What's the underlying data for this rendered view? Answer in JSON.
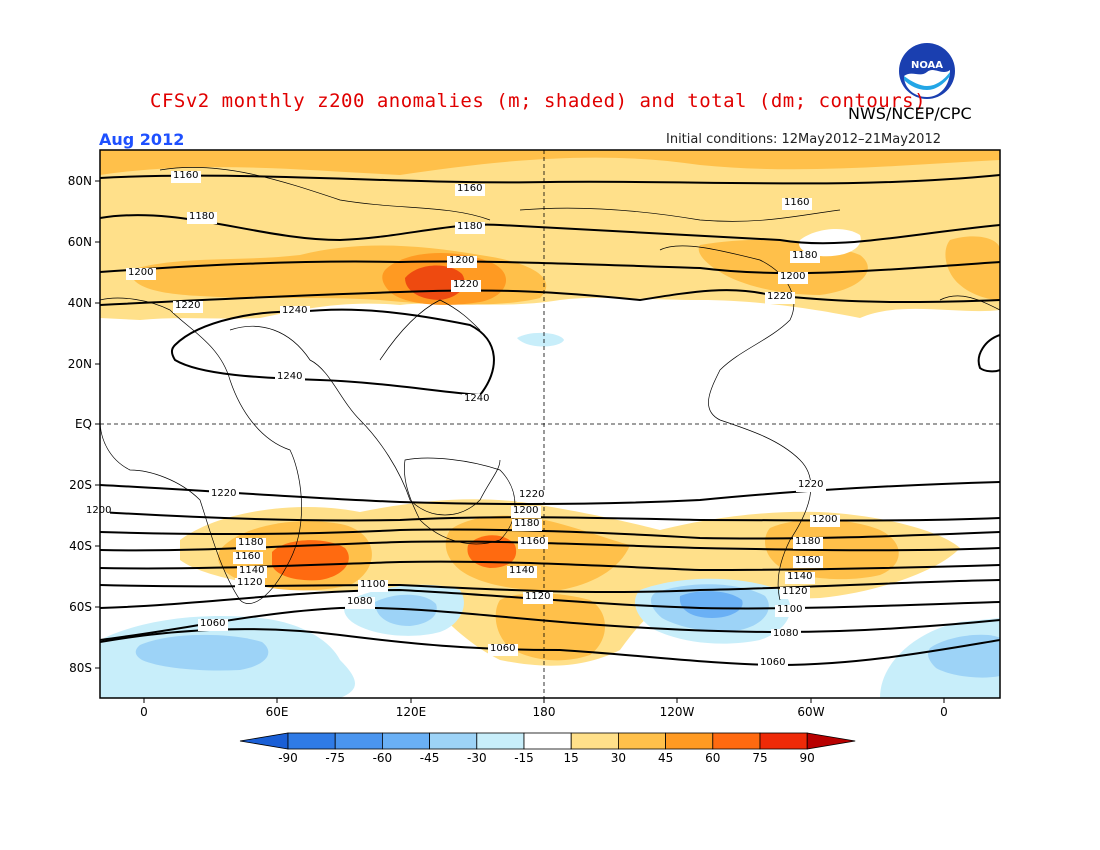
{
  "header": {
    "title": "CFSv2 monthly z200 anomalies (m; shaded) and total (dm; contours)",
    "agency": "NWS/NCEP/CPC",
    "month": "Aug 2012",
    "initial_conditions": "Initial conditions: 12May2012–21May2012",
    "logo_text": "NOAA"
  },
  "map": {
    "latitude_labels": [
      "80N",
      "60N",
      "40N",
      "20N",
      "EQ",
      "20S",
      "40S",
      "60S",
      "80S"
    ],
    "longitude_labels": [
      "0",
      "60E",
      "120E",
      "180",
      "120W",
      "60W",
      "0"
    ],
    "contour_labels": [
      "1160",
      "1160",
      "1160",
      "1180",
      "1180",
      "1180",
      "1200",
      "1200",
      "1200",
      "1220",
      "1220",
      "1220",
      "1240",
      "1240",
      "1240",
      "1220",
      "1220",
      "1220",
      "1200",
      "1200",
      "1200",
      "1180",
      "1180",
      "1180",
      "1160",
      "1160",
      "1160",
      "1140",
      "1140",
      "1140",
      "1120",
      "1120",
      "1120",
      "1100",
      "1100",
      "1080",
      "1080",
      "1060",
      "1060",
      "1060"
    ]
  },
  "colorbar": {
    "labels": [
      "-90",
      "-75",
      "-60",
      "-45",
      "-30",
      "-15",
      "15",
      "30",
      "45",
      "60",
      "75",
      "90"
    ],
    "colors": [
      "#1a5fd6",
      "#2f7be6",
      "#4a95ef",
      "#6ab0f5",
      "#9dd3f7",
      "#c8eefa",
      "#ffffff",
      "#ffe08a",
      "#ffc04a",
      "#ff9a22",
      "#ff6a10",
      "#ee2a08",
      "#b80000"
    ]
  },
  "colors": {
    "title": "#e00000",
    "month": "#1e50ff",
    "contour": "#000000"
  }
}
